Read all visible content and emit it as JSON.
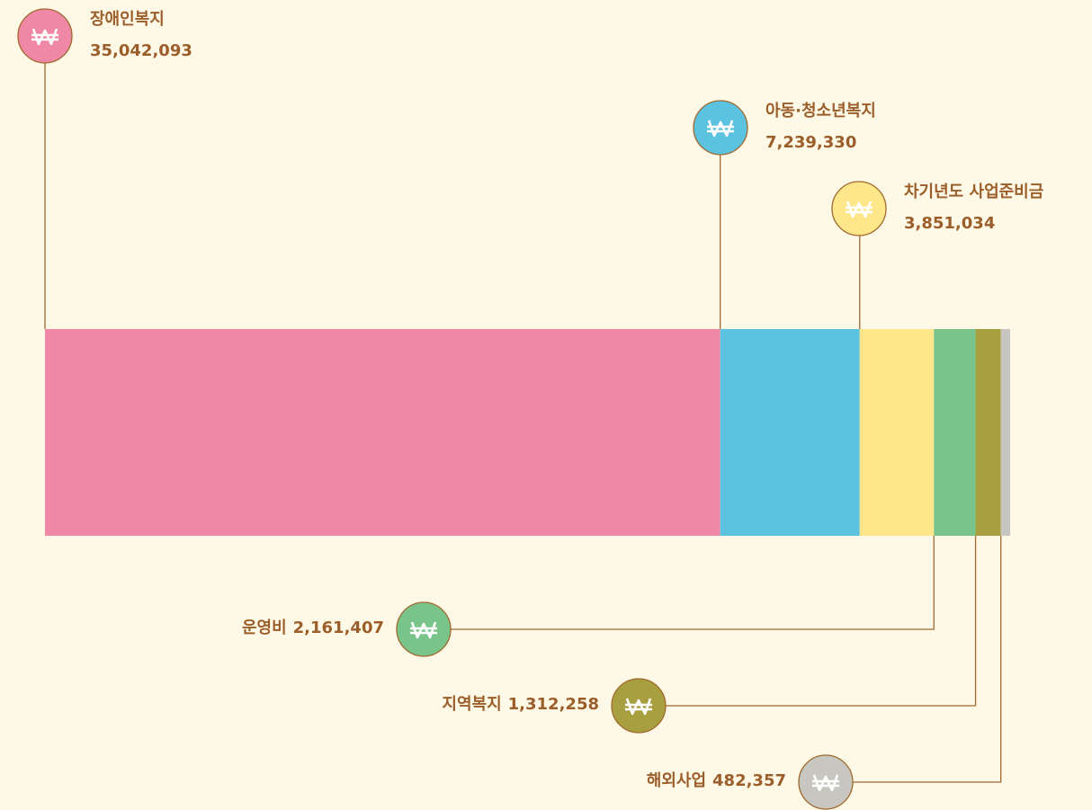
{
  "chart_data": {
    "type": "bar",
    "orientation": "horizontal",
    "stacked": true,
    "categories": [
      "장애인복지",
      "아동·청소년복지",
      "차기년도 사업준비금",
      "운영비",
      "지역복지",
      "해외사업"
    ],
    "values": [
      35042093,
      7239330,
      3851034,
      2161407,
      1312258,
      482357
    ],
    "value_labels": [
      "35,042,093",
      "7,239,330",
      "3,851,034",
      "2,161,407",
      "1,312,258",
      "482,357"
    ],
    "colors": [
      "#ef87a6",
      "#5bc2e0",
      "#fee78a",
      "#79c48a",
      "#a89f40",
      "#c8c6c0"
    ]
  }
}
